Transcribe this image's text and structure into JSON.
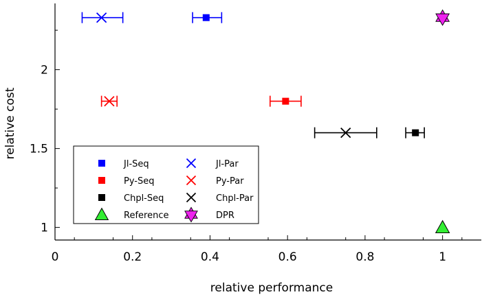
{
  "chart_data": {
    "type": "scatter",
    "xlabel": "relative performance",
    "ylabel": "relative cost",
    "xlim": [
      0,
      1.1
    ],
    "ylim": [
      0.92,
      2.42
    ],
    "xticks": [
      0,
      0.2,
      0.4,
      0.6,
      0.8,
      1
    ],
    "xtick_labels": [
      "0",
      "0.2",
      "0.4",
      "0.6",
      "0.8",
      "1"
    ],
    "yticks": [
      1,
      1.5,
      2
    ],
    "ytick_labels": [
      "1",
      "1.5",
      "2"
    ],
    "grid": false,
    "legend_placement": "bottom-left",
    "series": [
      {
        "name": "Jl-Seq",
        "marker": "square",
        "color": "#0000ff",
        "x": 0.39,
        "y": 2.33,
        "xerr": [
          0.355,
          0.43
        ]
      },
      {
        "name": "Jl-Par",
        "marker": "x",
        "color": "#0000ff",
        "x": 0.12,
        "y": 2.33,
        "xerr": [
          0.07,
          0.175
        ]
      },
      {
        "name": "Py-Seq",
        "marker": "square",
        "color": "#ff0000",
        "x": 0.595,
        "y": 1.8,
        "xerr": [
          0.555,
          0.635
        ]
      },
      {
        "name": "Py-Par",
        "marker": "x",
        "color": "#ff0000",
        "x": 0.14,
        "y": 1.8,
        "xerr": [
          0.12,
          0.16
        ]
      },
      {
        "name": "Chpl-Seq",
        "marker": "square",
        "color": "#000000",
        "x": 0.93,
        "y": 1.6,
        "xerr": [
          0.905,
          0.953
        ]
      },
      {
        "name": "Chpl-Par",
        "marker": "x",
        "color": "#000000",
        "x": 0.75,
        "y": 1.6,
        "xerr": [
          0.67,
          0.83
        ]
      },
      {
        "name": "Reference",
        "marker": "triangle",
        "color": "#33ee33",
        "x": 1.0,
        "y": 1.0
      },
      {
        "name": "DPR",
        "marker": "star",
        "color": "#ee22ee",
        "x": 1.0,
        "y": 2.33
      }
    ],
    "legend_layout": [
      [
        "Jl-Seq",
        "Jl-Par"
      ],
      [
        "Py-Seq",
        "Py-Par"
      ],
      [
        "Chpl-Seq",
        "Chpl-Par"
      ],
      [
        "Reference",
        "DPR"
      ]
    ]
  }
}
